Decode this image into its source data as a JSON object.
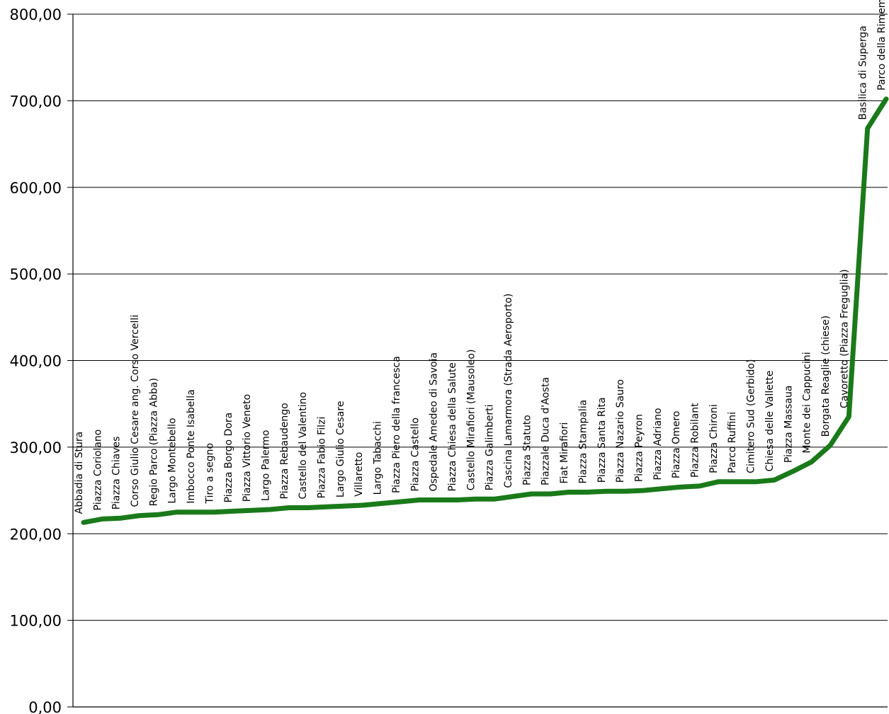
{
  "chart_data": {
    "type": "line",
    "title": "",
    "xlabel": "",
    "ylabel": "",
    "ylim": [
      0,
      800
    ],
    "y_ticks": [
      "0,00",
      "100,00",
      "200,00",
      "300,00",
      "400,00",
      "500,00",
      "600,00",
      "700,00",
      "800,00"
    ],
    "grid": true,
    "legend": "none",
    "line_color": "#1a7a1a",
    "categories": [
      "Abbadia di Stura",
      "Piazza Coriolano",
      "Piazza Chiaves",
      "Corso Giulio Cesare ang. Corso Vercelli",
      "Regio Parco (Piazza Abba)",
      "Largo Montebello",
      "Imbocco Ponte Isabella",
      "Tiro a segno",
      "Piazza Borgo Dora",
      "Piazza Vittorio Veneto",
      "Largo Palermo",
      "Piazza Rebaudengo",
      "Castello del Valentino",
      "Piazza Fabio Filzi",
      "Largo Giulio Cesare",
      "Villaretto",
      "Largo Tabacchi",
      "Piazza Piero della francesca",
      "Piazza Castello",
      "Ospedale Amedeo di Savoia",
      "Piazza Chiesa della Salute",
      "Castello Mirafiori (Mausoleo)",
      "Piazza Galimberti",
      "Cascina Lamarmora (Strada Aeroporto)",
      "Piazza Statuto",
      "Piazzale Duca d'Aosta",
      "Fiat Mirafiori",
      "Piazza Stampalia",
      "Piazza Santa Rita",
      "Piazza Nazario Sauro",
      "Piazza Peyron",
      "Piazza Adriano",
      "Piazza Omero",
      "Piazza Robilant",
      "Piazza Chironi",
      "Parco Ruffini",
      "Cimitero Sud (Gerbido)",
      "Chiesa delle Vallette",
      "Piazza Massaua",
      "Monte dei Cappucini",
      "Borgata Reaglie (chiese)",
      "Cavoretto (Piazza Freguglia)",
      "Basilica di Superga",
      "Parco della Rimembranza"
    ],
    "values": [
      213,
      217,
      218,
      221,
      222,
      225,
      225,
      225,
      226,
      227,
      228,
      230,
      230,
      231,
      232,
      233,
      235,
      237,
      239,
      239,
      239,
      240,
      240,
      243,
      246,
      246,
      248,
      248,
      249,
      249,
      250,
      252,
      254,
      255,
      260,
      260,
      260,
      262,
      272,
      283,
      302,
      335,
      668,
      702
    ]
  }
}
